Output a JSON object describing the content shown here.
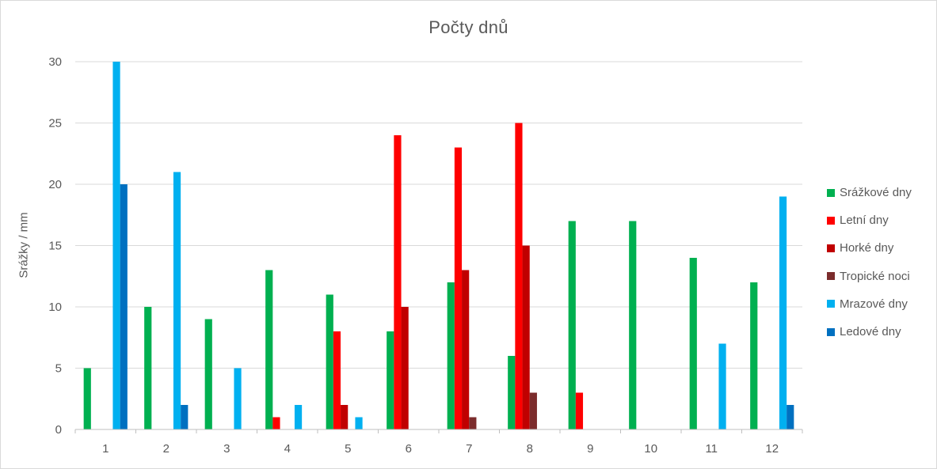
{
  "chart_data": {
    "type": "bar",
    "title": "Počty dnů",
    "ylabel": "Srážky / mm",
    "xlabel": "",
    "ylim": [
      0,
      30
    ],
    "yticks": [
      0,
      5,
      10,
      15,
      20,
      25,
      30
    ],
    "grid": true,
    "legend_position": "right",
    "categories": [
      "1",
      "2",
      "3",
      "4",
      "5",
      "6",
      "7",
      "8",
      "9",
      "10",
      "11",
      "12"
    ],
    "series": [
      {
        "name": "Srážkové dny",
        "color": "#00b050",
        "values": [
          5,
          10,
          9,
          13,
          11,
          8,
          12,
          6,
          17,
          17,
          14,
          12
        ]
      },
      {
        "name": "Letní dny",
        "color": "#ff0000",
        "values": [
          0,
          0,
          0,
          1,
          8,
          24,
          23,
          25,
          3,
          0,
          0,
          0
        ]
      },
      {
        "name": "Horké dny",
        "color": "#c00000",
        "values": [
          0,
          0,
          0,
          0,
          2,
          10,
          13,
          15,
          0,
          0,
          0,
          0
        ]
      },
      {
        "name": "Tropické noci",
        "color": "#7b2c2c",
        "values": [
          0,
          0,
          0,
          0,
          0,
          0,
          1,
          3,
          0,
          0,
          0,
          0
        ]
      },
      {
        "name": "Mrazové dny",
        "color": "#00b0f0",
        "values": [
          30,
          21,
          5,
          2,
          1,
          0,
          0,
          0,
          0,
          0,
          7,
          19
        ]
      },
      {
        "name": "Ledové dny",
        "color": "#0070c0",
        "values": [
          20,
          2,
          0,
          0,
          0,
          0,
          0,
          0,
          0,
          0,
          0,
          2
        ]
      }
    ]
  }
}
